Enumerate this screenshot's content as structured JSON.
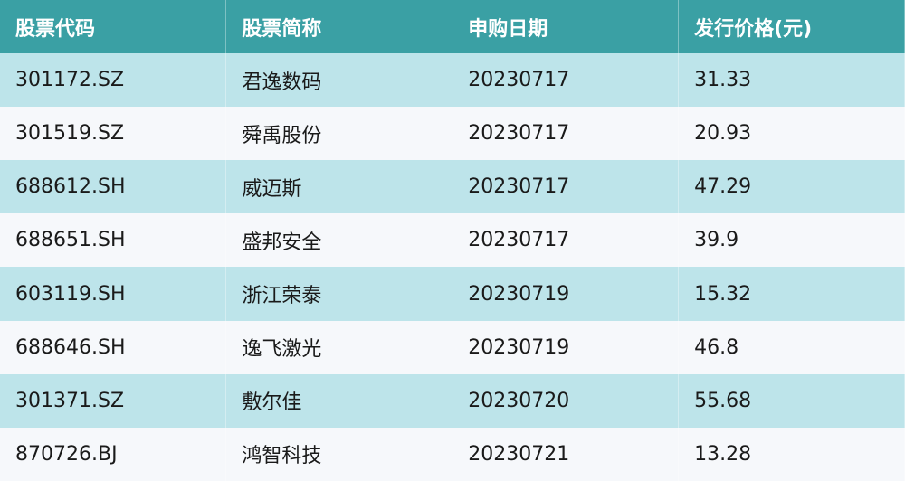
{
  "table": {
    "headers": [
      "股票代码",
      "股票简称",
      "申购日期",
      "发行价格(元)"
    ],
    "rows": [
      [
        "301172.SZ",
        "君逸数码",
        "20230717",
        "31.33"
      ],
      [
        "301519.SZ",
        "舜禹股份",
        "20230717",
        "20.93"
      ],
      [
        "688612.SH",
        "威迈斯",
        "20230717",
        "47.29"
      ],
      [
        "688651.SH",
        "盛邦安全",
        "20230717",
        "39.9"
      ],
      [
        "603119.SH",
        "浙江荣泰",
        "20230719",
        "15.32"
      ],
      [
        "688646.SH",
        "逸飞激光",
        "20230719",
        "46.8"
      ],
      [
        "301371.SZ",
        "敷尔佳",
        "20230720",
        "55.68"
      ],
      [
        "870726.BJ",
        "鸿智科技",
        "20230721",
        "13.28"
      ]
    ]
  },
  "colors": {
    "header": "#3aa0a4",
    "row_alt": "#bde4ea",
    "row": "#f6f8fb"
  }
}
